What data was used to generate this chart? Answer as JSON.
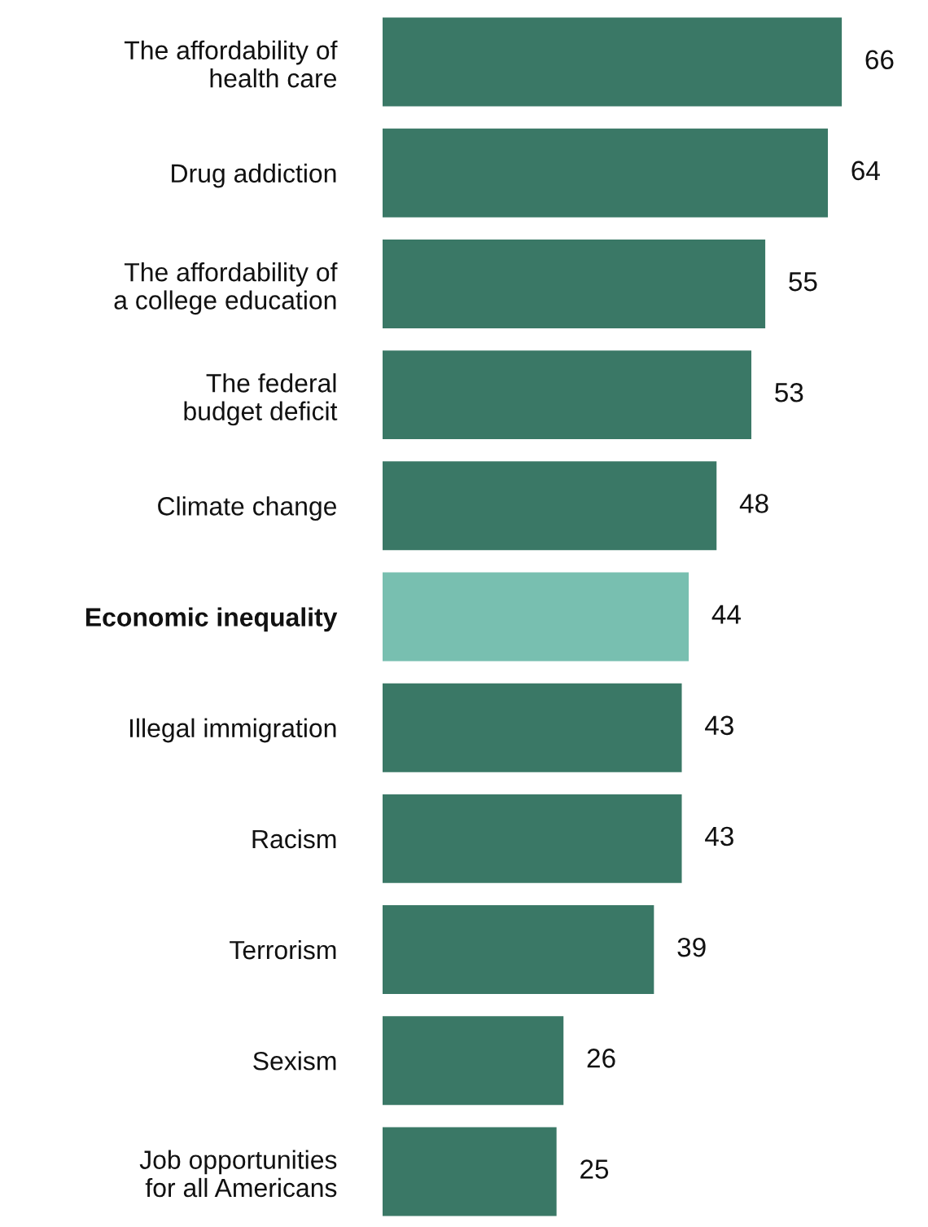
{
  "chart_data": {
    "type": "bar",
    "orientation": "horizontal",
    "categories": [
      "The affordability of\nhealth care",
      "Drug addiction",
      "The affordability of\na college education",
      "The federal\nbudget deficit",
      "Climate change",
      "Economic inequality",
      "Illegal immigration",
      "Racism",
      "Terrorism",
      "Sexism",
      "Job opportunities\nfor all Americans"
    ],
    "values": [
      66,
      64,
      55,
      53,
      48,
      44,
      43,
      43,
      39,
      26,
      25
    ],
    "colors": [
      "#3a7866",
      "#3a7866",
      "#3a7866",
      "#3a7866",
      "#3a7866",
      "#78bfb0",
      "#3a7866",
      "#3a7866",
      "#3a7866",
      "#3a7866",
      "#3a7866"
    ],
    "data_labels": true
  }
}
